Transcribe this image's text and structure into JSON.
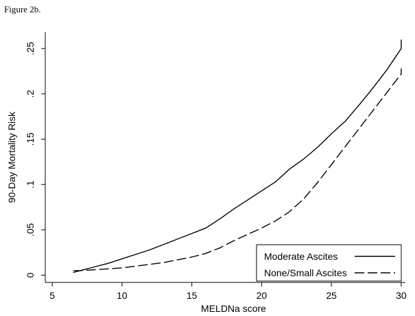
{
  "figure_caption": "Figure 2b.",
  "chart_data": {
    "type": "line",
    "title": "",
    "xlabel": "MELDNa score",
    "ylabel": "90-Day Mortality Risk",
    "xlim": [
      4.5,
      30.3
    ],
    "ylim": [
      -0.008,
      0.268
    ],
    "x_ticks": [
      5,
      10,
      15,
      20,
      25,
      30
    ],
    "x_tick_labels": [
      "5",
      "10",
      "15",
      "20",
      "25",
      "30"
    ],
    "y_ticks": [
      0,
      0.05,
      0.1,
      0.15,
      0.2,
      0.25
    ],
    "y_tick_labels": [
      "0",
      ".05",
      ".1",
      ".15",
      ".2",
      ".25"
    ],
    "grid": false,
    "legend_position": "bottom-right",
    "series": [
      {
        "name": "Moderate Ascites",
        "style": "solid",
        "color": "#000000",
        "points": [
          [
            6.5,
            0.003
          ],
          [
            7,
            0.005
          ],
          [
            8,
            0.009
          ],
          [
            9,
            0.013
          ],
          [
            10,
            0.018
          ],
          [
            11,
            0.023
          ],
          [
            12,
            0.028
          ],
          [
            13,
            0.034
          ],
          [
            14,
            0.04
          ],
          [
            15,
            0.046
          ],
          [
            16,
            0.052
          ],
          [
            17,
            0.062
          ],
          [
            18,
            0.073
          ],
          [
            19,
            0.083
          ],
          [
            20,
            0.093
          ],
          [
            21,
            0.103
          ],
          [
            22,
            0.117
          ],
          [
            23,
            0.128
          ],
          [
            24,
            0.141
          ],
          [
            25,
            0.156
          ],
          [
            26,
            0.17
          ],
          [
            27,
            0.188
          ],
          [
            28,
            0.207
          ],
          [
            29,
            0.227
          ],
          [
            30,
            0.25
          ],
          [
            30,
            0.26
          ]
        ]
      },
      {
        "name": "None/Small Ascites",
        "style": "dashed",
        "color": "#000000",
        "points": [
          [
            6.5,
            0.005
          ],
          [
            7,
            0.005
          ],
          [
            8,
            0.006
          ],
          [
            9,
            0.007
          ],
          [
            10,
            0.008
          ],
          [
            11,
            0.01
          ],
          [
            12,
            0.012
          ],
          [
            13,
            0.014
          ],
          [
            14,
            0.017
          ],
          [
            15,
            0.02
          ],
          [
            16,
            0.024
          ],
          [
            17,
            0.03
          ],
          [
            18,
            0.038
          ],
          [
            19,
            0.045
          ],
          [
            20,
            0.052
          ],
          [
            21,
            0.06
          ],
          [
            22,
            0.07
          ],
          [
            23,
            0.084
          ],
          [
            24,
            0.102
          ],
          [
            25,
            0.122
          ],
          [
            26,
            0.142
          ],
          [
            27,
            0.162
          ],
          [
            28,
            0.182
          ],
          [
            29,
            0.202
          ],
          [
            30,
            0.222
          ],
          [
            30,
            0.228
          ]
        ]
      }
    ]
  }
}
